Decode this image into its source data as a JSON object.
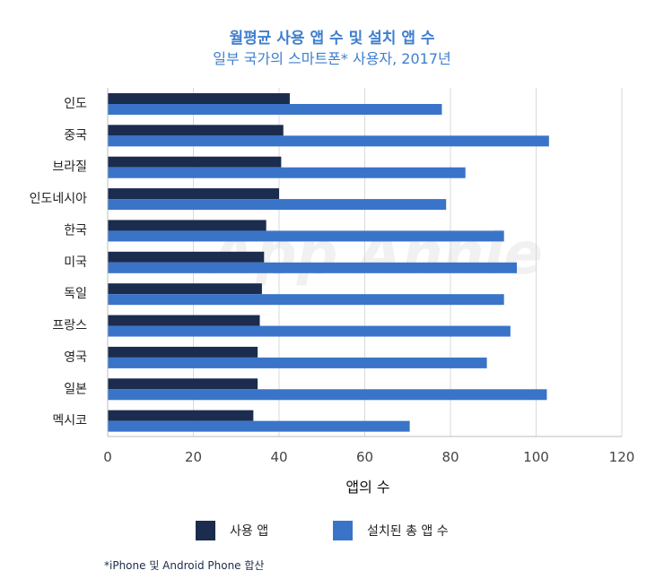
{
  "title": "월평균 사용 앱 수 및 설치 앱 수",
  "subtitle": "일부 국가의 스마트폰* 사용자, 2017년",
  "footnote": "*iPhone 및 Android Phone 합산",
  "watermark": "App Annie",
  "colors": {
    "used": "#1b2c4f",
    "installed": "#3a74c9",
    "title": "#3f7fce",
    "grid": "#d9d9d9"
  },
  "chart_data": {
    "type": "bar",
    "orientation": "horizontal",
    "title": "월평균 사용 앱 수 및 설치 앱 수",
    "subtitle": "일부 국가의 스마트폰* 사용자, 2017년",
    "xlabel": "앱의 수",
    "ylabel": "",
    "xlim": [
      0,
      120
    ],
    "xticks": [
      0,
      20,
      40,
      60,
      80,
      100,
      120
    ],
    "grid": true,
    "legend_position": "bottom",
    "categories": [
      "인도",
      "중국",
      "브라질",
      "인도네시아",
      "한국",
      "미국",
      "독일",
      "프랑스",
      "영국",
      "일본",
      "멕시코"
    ],
    "series": [
      {
        "name": "사용 앱",
        "color": "#1b2c4f",
        "values": [
          42.5,
          41,
          40.5,
          40,
          37,
          36.5,
          36,
          35.5,
          35,
          35,
          34
        ]
      },
      {
        "name": "설치된 총 앱 수",
        "color": "#3a74c9",
        "values": [
          78,
          103,
          83.5,
          79,
          92.5,
          95.5,
          92.5,
          94,
          88.5,
          102.5,
          70.5
        ]
      }
    ]
  }
}
